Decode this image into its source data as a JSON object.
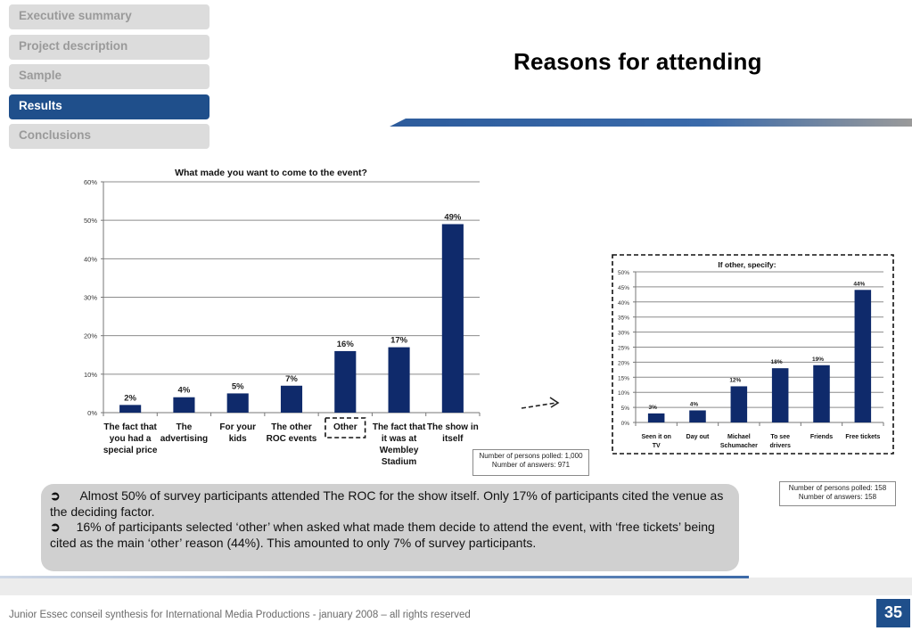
{
  "nav": {
    "items": [
      {
        "label": "Executive summary",
        "active": false
      },
      {
        "label": "Project description",
        "active": false
      },
      {
        "label": "Sample",
        "active": false
      },
      {
        "label": "Results",
        "active": true
      },
      {
        "label": "Conclusions",
        "active": false
      }
    ]
  },
  "page_title": "Reasons for attending",
  "chart_data": [
    {
      "type": "bar",
      "title": "What made you want to come to the event?",
      "categories": [
        [
          "The fact that",
          "you had a",
          "special price"
        ],
        [
          "The",
          "advertising"
        ],
        [
          "For your",
          "kids"
        ],
        [
          "The other",
          "ROC events"
        ],
        [
          "Other"
        ],
        [
          "The fact that",
          "it was at",
          "Wembley",
          "Stadium"
        ],
        [
          "The show in",
          "itself"
        ]
      ],
      "values": [
        2,
        4,
        5,
        7,
        16,
        17,
        49
      ],
      "data_labels": [
        "2%",
        "4%",
        "5%",
        "7%",
        "16%",
        "17%",
        "49%"
      ],
      "y_ticks": [
        "0%",
        "10%",
        "20%",
        "30%",
        "40%",
        "50%",
        "60%"
      ],
      "ylim": [
        0,
        60
      ],
      "highlighted_category": "Other",
      "bar_color": "#0f2a6b",
      "grid": true,
      "note": [
        "Number of persons polled: 1,000",
        "Number of answers: 971"
      ]
    },
    {
      "type": "bar",
      "title": "If other, specify:",
      "categories": [
        [
          "Seen it on",
          "TV"
        ],
        [
          "Day out"
        ],
        [
          "Michael",
          "Schumacher"
        ],
        [
          "To see",
          "drivers"
        ],
        [
          "Friends"
        ],
        [
          "Free tickets"
        ]
      ],
      "values": [
        3,
        4,
        12,
        18,
        19,
        44
      ],
      "data_labels": [
        "3%",
        "4%",
        "12%",
        "18%",
        "19%",
        "44%"
      ],
      "y_ticks": [
        "0%",
        "5%",
        "10%",
        "15%",
        "20%",
        "25%",
        "30%",
        "35%",
        "40%",
        "45%",
        "50%"
      ],
      "ylim": [
        0,
        50
      ],
      "bar_color": "#0f2a6b",
      "grid": true,
      "note": [
        "Number of persons polled: 158",
        "Number of answers: 158"
      ]
    }
  ],
  "summary": {
    "bullets": [
      "Almost 50% of survey participants attended The ROC for the show itself. Only 17% of participants cited the venue as the deciding factor.",
      "16% of participants selected ‘other’ when asked what made them decide to attend the event, with ‘free tickets’ being cited as the main ‘other’ reason (44%). This amounted to only 7% of survey participants."
    ]
  },
  "footer": {
    "text": "Junior Essec conseil synthesis for International Media Productions - january 2008 – all rights reserved",
    "page_number": "35"
  }
}
